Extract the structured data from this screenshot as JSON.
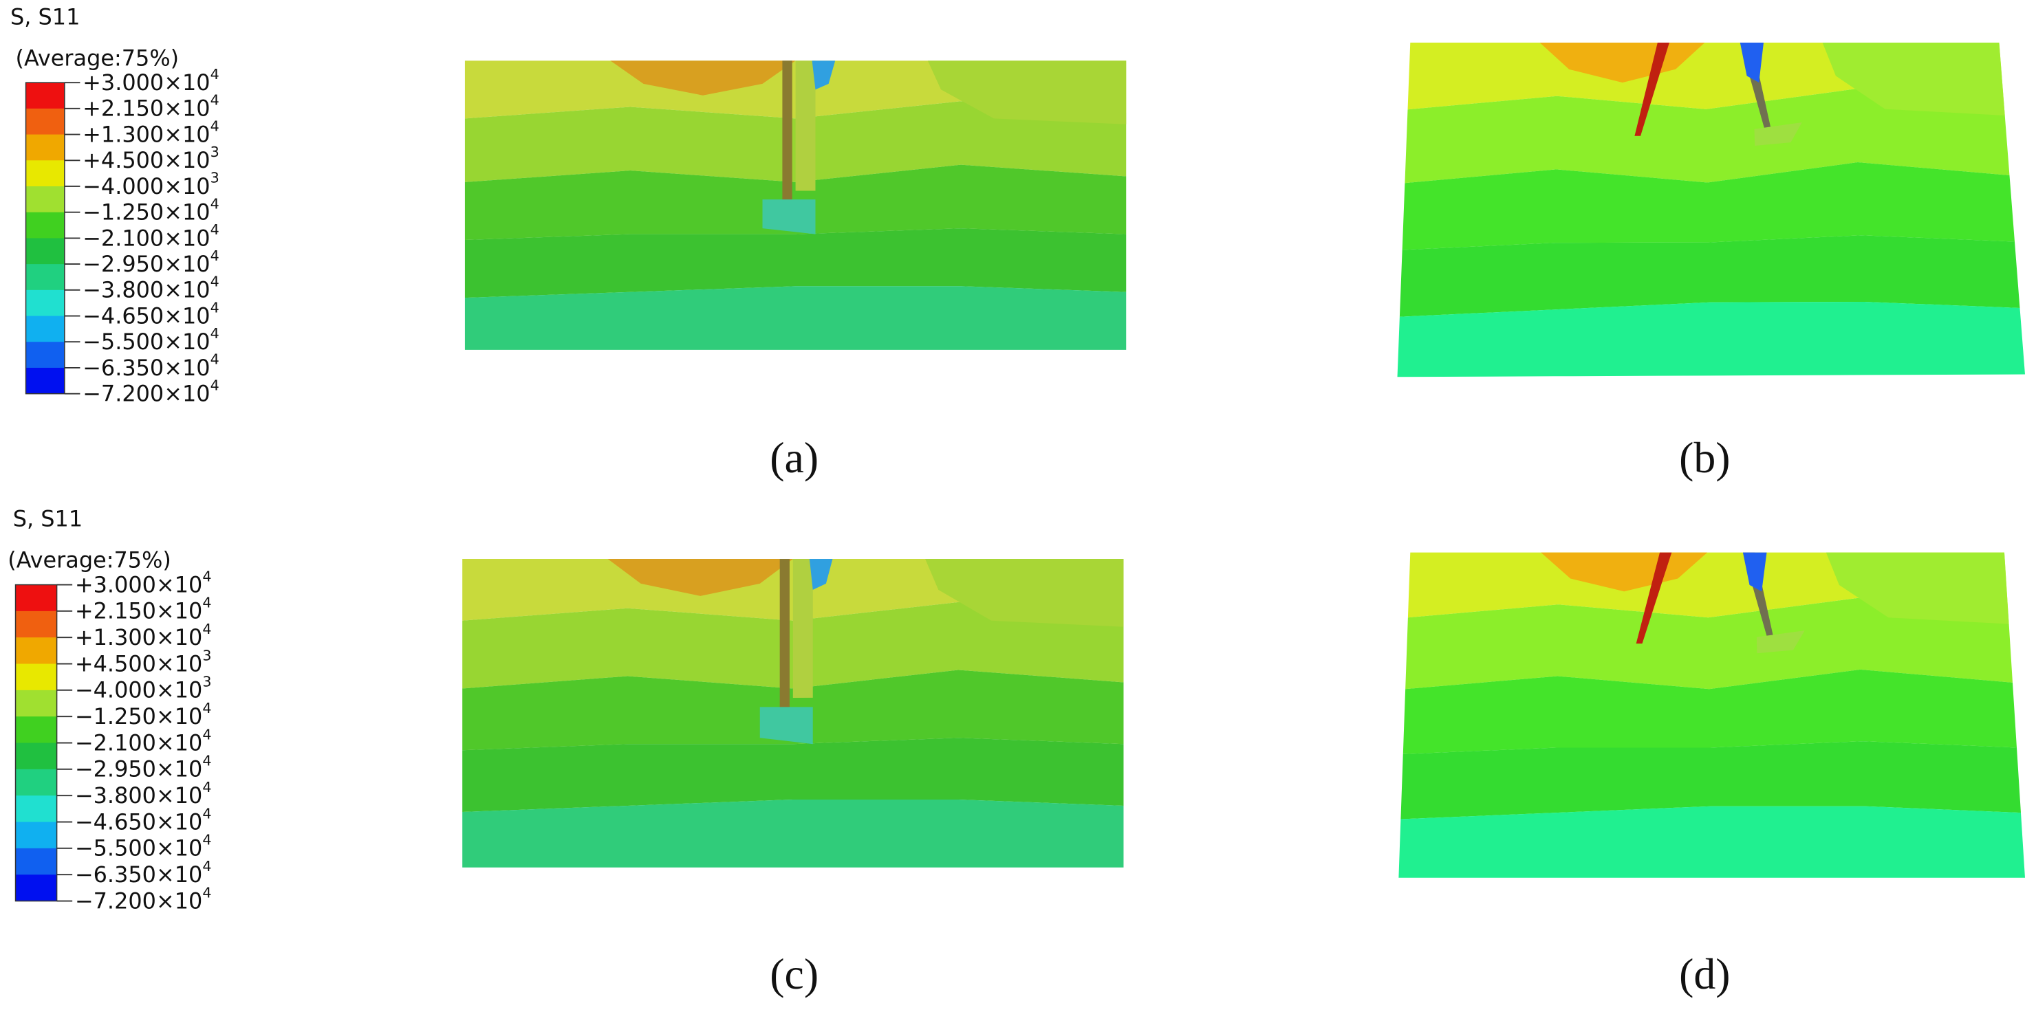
{
  "legends": [
    {
      "title": "S, S11",
      "subtitle": "(Average:75%)",
      "colors": [
        "#ee1010",
        "#f06010",
        "#f0a800",
        "#e8e800",
        "#a0e030",
        "#40d020",
        "#20c040",
        "#20d080",
        "#20e0d0",
        "#10b0f0",
        "#1060f0",
        "#0010f0"
      ],
      "labels": [
        {
          "text": "+3.000×10",
          "exponent": "4"
        },
        {
          "text": "+2.150×10",
          "exponent": "4"
        },
        {
          "text": "+1.300×10",
          "exponent": "4"
        },
        {
          "text": "+4.500×10",
          "exponent": "3"
        },
        {
          "text": "−4.000×10",
          "exponent": "3"
        },
        {
          "text": "−1.250×10",
          "exponent": "4"
        },
        {
          "text": "−2.100×10",
          "exponent": "4"
        },
        {
          "text": "−2.950×10",
          "exponent": "4"
        },
        {
          "text": "−3.800×10",
          "exponent": "4"
        },
        {
          "text": "−4.650×10",
          "exponent": "4"
        },
        {
          "text": "−5.500×10",
          "exponent": "4"
        },
        {
          "text": "−6.350×10",
          "exponent": "4"
        },
        {
          "text": "−7.200×10",
          "exponent": "4"
        }
      ]
    },
    {
      "title": "S, S11",
      "subtitle": "(Average:75%)",
      "colors": [
        "#ee1010",
        "#f06010",
        "#f0a800",
        "#e8e800",
        "#a0e030",
        "#40d020",
        "#20c040",
        "#20d080",
        "#20e0d0",
        "#10b0f0",
        "#1060f0",
        "#0010f0"
      ],
      "labels": [
        {
          "text": "+3.000×10",
          "exponent": "4"
        },
        {
          "text": "+2.150×10",
          "exponent": "4"
        },
        {
          "text": "+1.300×10",
          "exponent": "4"
        },
        {
          "text": "+4.500×10",
          "exponent": "3"
        },
        {
          "text": "−4.000×10",
          "exponent": "3"
        },
        {
          "text": "−1.250×10",
          "exponent": "4"
        },
        {
          "text": "−2.100×10",
          "exponent": "4"
        },
        {
          "text": "−2.950×10",
          "exponent": "4"
        },
        {
          "text": "−3.800×10",
          "exponent": "4"
        },
        {
          "text": "−4.650×10",
          "exponent": "4"
        },
        {
          "text": "−5.500×10",
          "exponent": "4"
        },
        {
          "text": "−6.350×10",
          "exponent": "4"
        },
        {
          "text": "−7.200×10",
          "exponent": "4"
        }
      ]
    }
  ],
  "panels": [
    {
      "label": "(a)"
    },
    {
      "label": "(b)"
    },
    {
      "label": "(c)"
    },
    {
      "label": "(d)"
    }
  ]
}
